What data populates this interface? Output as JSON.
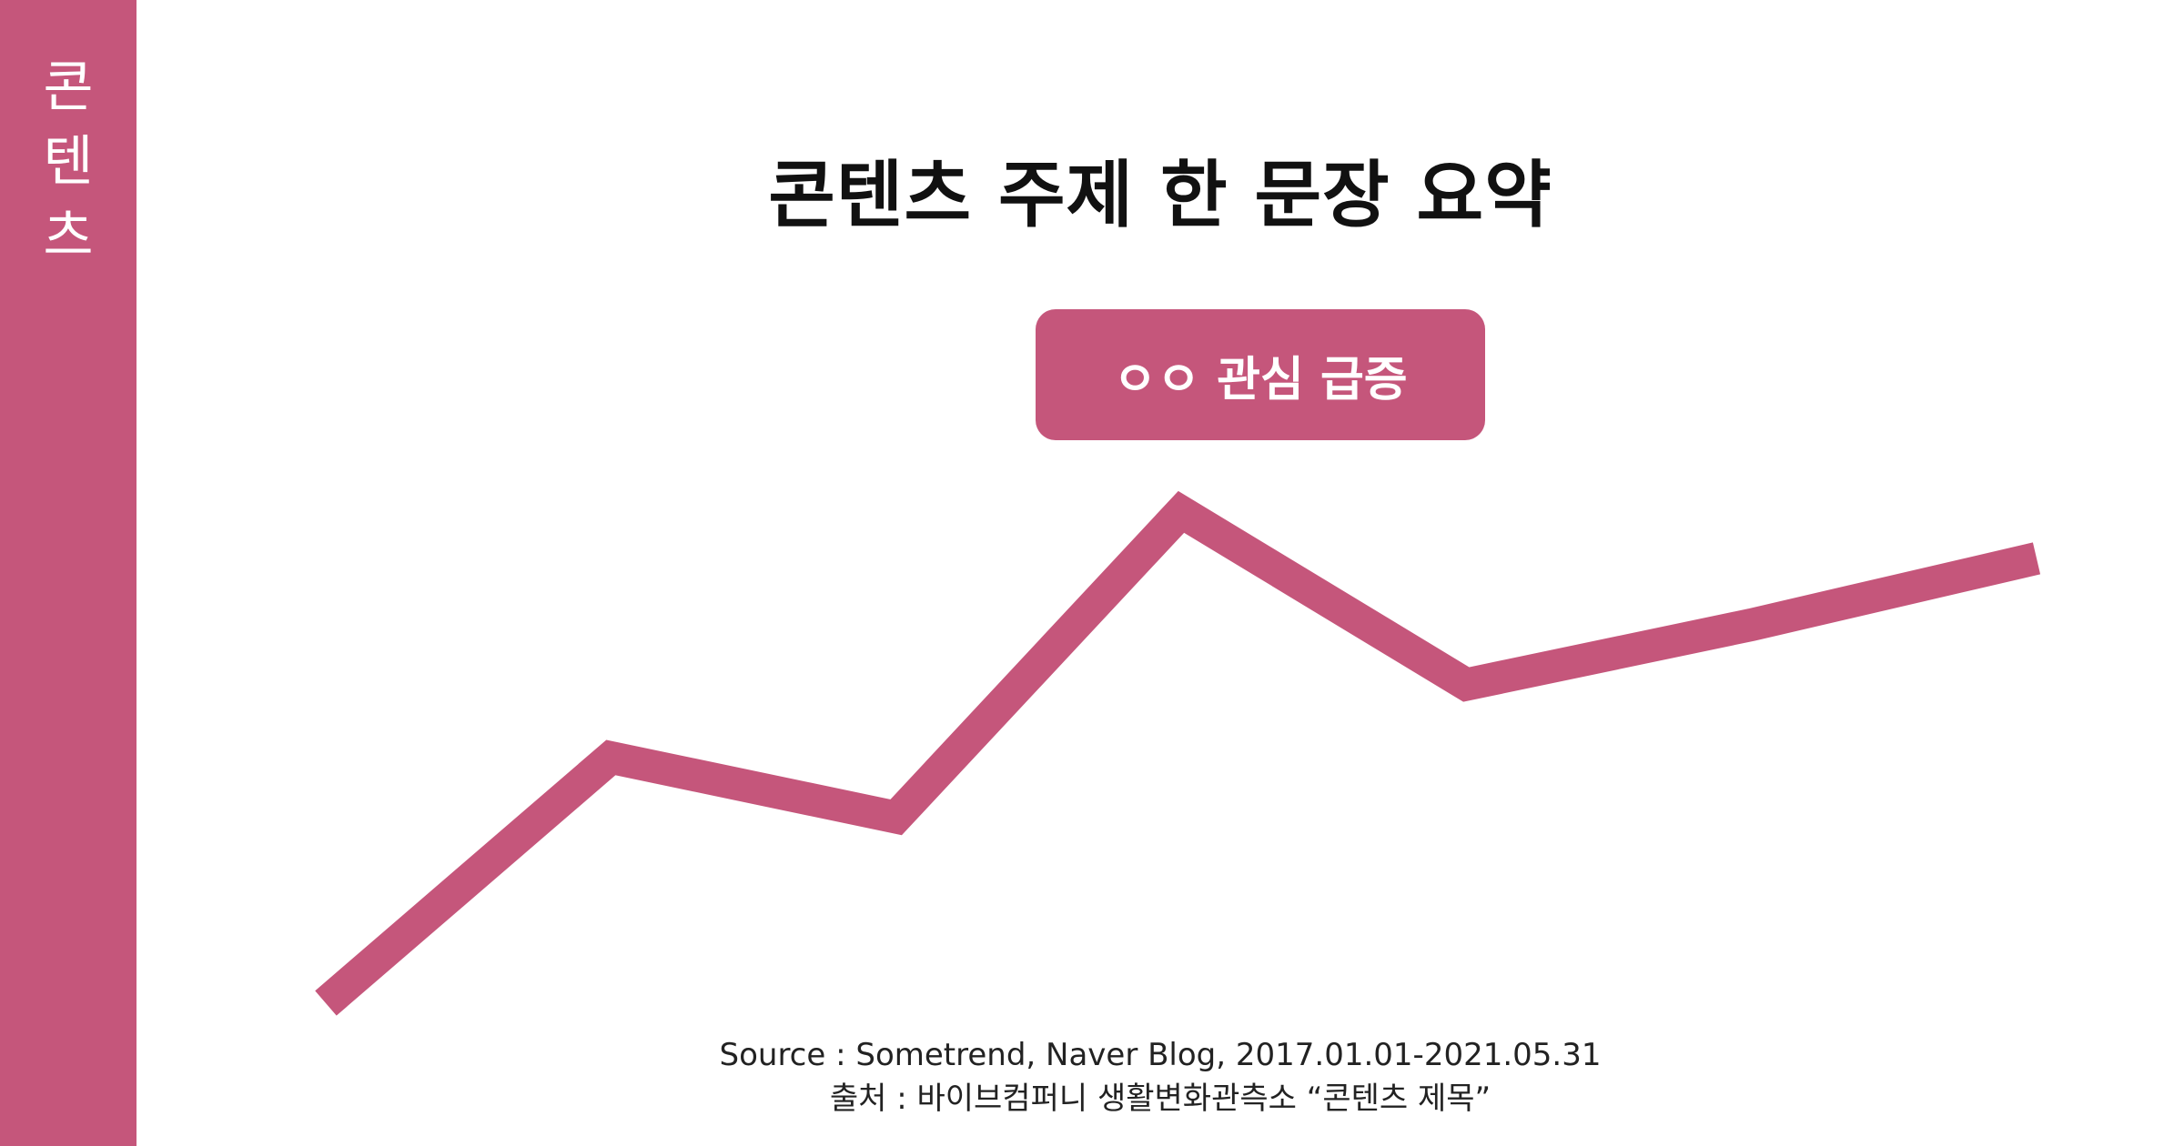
{
  "sidebar": {
    "label_chars": [
      "콘",
      "텐",
      "츠"
    ]
  },
  "header": {
    "title": "콘텐츠 주제 한 문장 요약"
  },
  "badge": {
    "label": "ㅇㅇ 관심 급증"
  },
  "source": {
    "line1": "Source : Sometrend, Naver Blog, 2017.01.01-2021.05.31",
    "line2": "출처 : 바이브컴퍼니 생활변화관측소 “콘텐츠 제목”"
  },
  "colors": {
    "accent": "#c5567b",
    "title_text": "#111111",
    "source_text": "#222222"
  },
  "chart_data": {
    "type": "line",
    "x": [
      1,
      2,
      3,
      4,
      5,
      6,
      7
    ],
    "series": [
      {
        "values": [
          10,
          47,
          38,
          84,
          58,
          67,
          77
        ]
      }
    ],
    "ylim": [
      0,
      100
    ],
    "grid": false,
    "legend": "none",
    "axes_visible": false
  }
}
